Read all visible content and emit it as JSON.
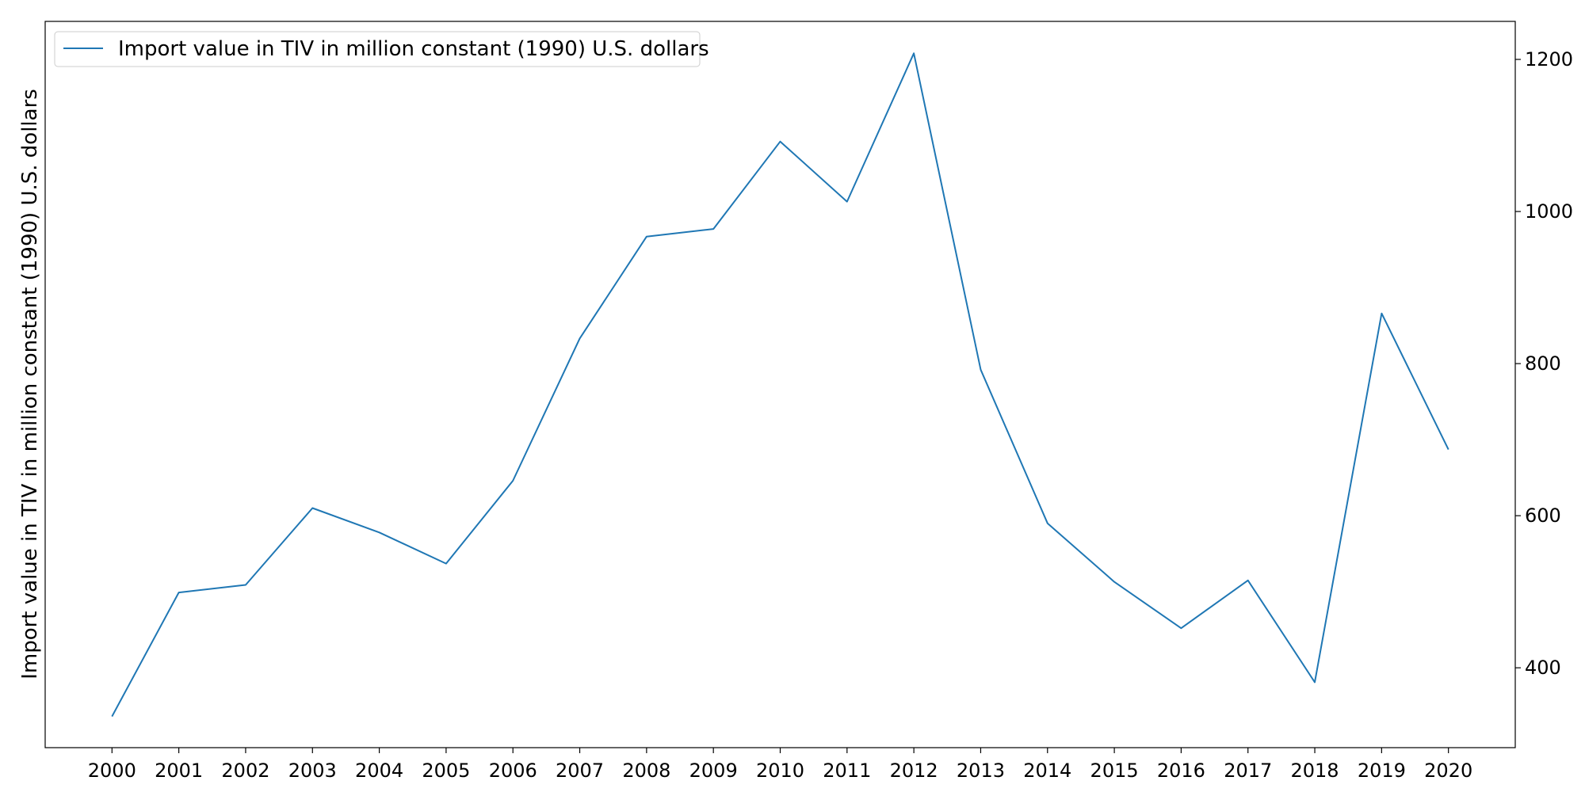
{
  "chart_data": {
    "type": "line",
    "title": "",
    "xlabel": "",
    "ylabel": "Import value in TIV in million constant (1990) U.S. dollars",
    "x": [
      2000,
      2001,
      2002,
      2003,
      2004,
      2005,
      2006,
      2007,
      2008,
      2009,
      2010,
      2011,
      2012,
      2013,
      2014,
      2015,
      2016,
      2017,
      2018,
      2019,
      2020
    ],
    "series": [
      {
        "name": "Import value in TIV in million constant (1990) U.S. dollars",
        "color": "#1f77b4",
        "values": [
          336,
          499,
          509,
          610,
          578,
          537,
          646,
          833,
          967,
          977,
          1092,
          1013,
          1208,
          792,
          590,
          513,
          452,
          515,
          381,
          866,
          687
        ]
      }
    ],
    "xticks": [
      "2000",
      "2001",
      "2002",
      "2003",
      "2004",
      "2005",
      "2006",
      "2007",
      "2008",
      "2009",
      "2010",
      "2011",
      "2012",
      "2013",
      "2014",
      "2015",
      "2016",
      "2017",
      "2018",
      "2019",
      "2020"
    ],
    "yticks": [
      "400",
      "600",
      "800",
      "1000",
      "1200"
    ],
    "ylim": [
      295,
      1250
    ],
    "xlim": [
      1999,
      2021
    ],
    "yaxis_side": "right",
    "grid": false,
    "legend_position": "top-left"
  }
}
